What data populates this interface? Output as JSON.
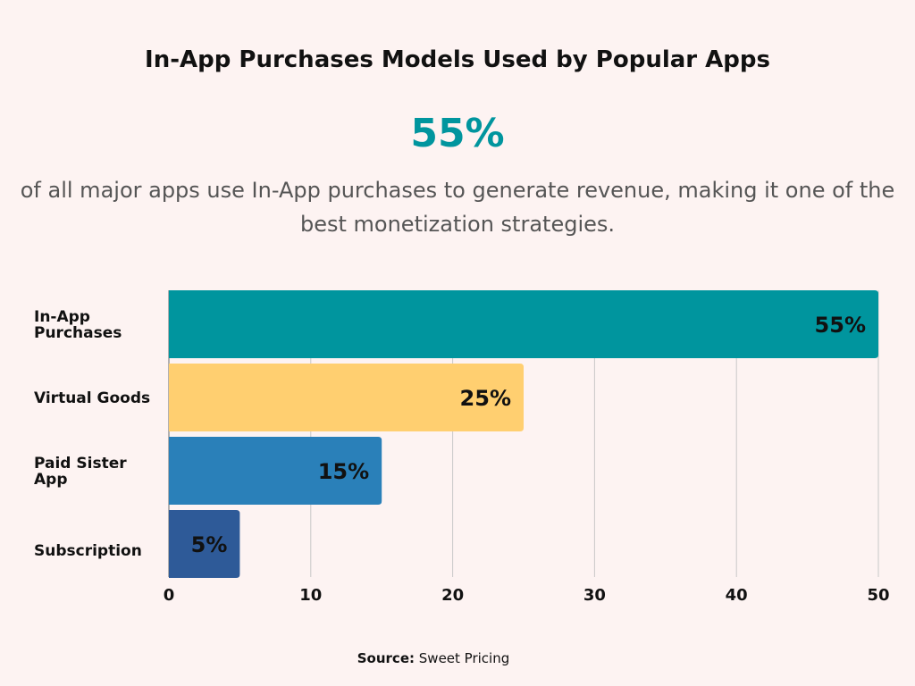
{
  "header": {
    "title": "In-App Purchases Models Used by Popular Apps",
    "highlight": "55%",
    "description": "of all major apps use In-App purchases to generate revenue, making it one of the best monetization strategies."
  },
  "source": {
    "label": "Source:",
    "value": "Sweet Pricing"
  },
  "chart_data": {
    "type": "bar",
    "orientation": "horizontal",
    "categories": [
      [
        "In-App",
        "Purchases"
      ],
      [
        "Virtual Goods"
      ],
      [
        "Paid Sister",
        "App"
      ],
      [
        "Subscription"
      ]
    ],
    "values": [
      55,
      25,
      15,
      5
    ],
    "data_labels": [
      "55%",
      "25%",
      "15%",
      "5%"
    ],
    "colors": [
      "#00959e",
      "#ffcf70",
      "#2a80b9",
      "#2e5a98"
    ],
    "xlim": [
      0,
      50
    ],
    "xticks": [
      "0",
      "10",
      "20",
      "30",
      "40",
      "50"
    ],
    "grid": true,
    "xlabel": "",
    "ylabel": ""
  }
}
